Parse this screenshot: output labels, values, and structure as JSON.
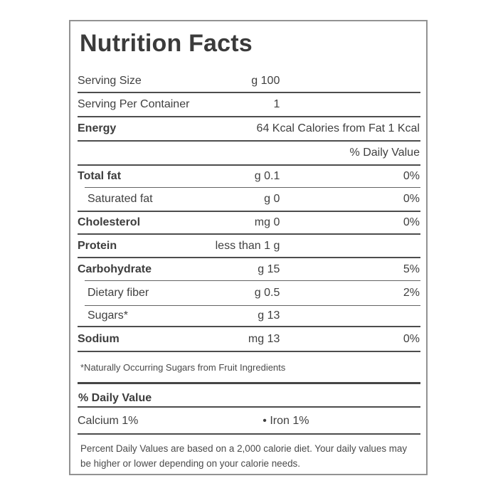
{
  "document": {
    "type": "nutrition-facts-label",
    "title": "Nutrition Facts",
    "colors": {
      "text": "#404040",
      "separator": "#4d4d4d",
      "thick_separator": "#454545",
      "panel_border": "#929292",
      "background": "#ffffff"
    },
    "rows": [
      {
        "label": "Serving Size",
        "amount": "100 g",
        "dv": ""
      },
      {
        "label": "Serving Per Container",
        "amount": "1",
        "dv": ""
      },
      {
        "label": "Energy",
        "amount": "",
        "dv": "64 Kcal Calories from Fat 1 Kcal"
      },
      {
        "label": "",
        "amount": "",
        "dv": "% Daily Value"
      },
      {
        "label": "Total fat",
        "amount": "0.1 g",
        "dv": "0%"
      },
      {
        "label": "Saturated fat",
        "amount": "0 g",
        "dv": "0%"
      },
      {
        "label": "Cholesterol",
        "amount": "0 mg",
        "dv": "0%"
      },
      {
        "label": "Protein",
        "amount": "less than 1 g",
        "dv": ""
      },
      {
        "label": "Carbohydrate",
        "amount": "15 g",
        "dv": "5%"
      },
      {
        "label": "Dietary fiber",
        "amount": "0.5 g",
        "dv": "2%"
      },
      {
        "label": "Sugars*",
        "amount": "13 g",
        "dv": ""
      },
      {
        "label": "Sodium",
        "amount": "13 mg",
        "dv": "0%"
      }
    ],
    "sugar_note": "*Naturally Occurring Sugars from Fruit Ingredients",
    "daily_value_header": "% Daily Value",
    "minerals": {
      "calcium": "Calcium 1%",
      "iron": "• Iron 1%"
    },
    "footnote": {
      "line1": "Percent Daily Values are based on a 2,000 calorie diet. Your daily values may",
      "line2": "be higher or lower depending on your calorie needs."
    }
  }
}
